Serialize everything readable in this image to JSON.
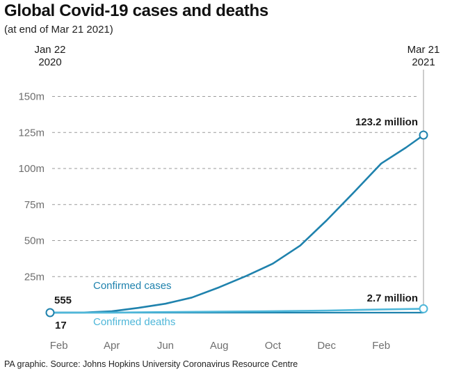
{
  "title": "Global Covid-19 cases and deaths",
  "subtitle": "(at end of Mar 21 2021)",
  "source": "PA graphic. Source: Johns Hopkins University Coronavirus Resource Centre",
  "colors": {
    "cases": "#1f82ad",
    "deaths": "#4fb7d9",
    "grid": "#9a9a9a",
    "axis_text": "#6e6e6e",
    "text": "#1a1a1a"
  },
  "chart_data": {
    "type": "line",
    "title": "Global Covid-19 cases and deaths",
    "xlabel": "",
    "ylabel": "",
    "x_range": [
      "2020-01-22",
      "2021-03-21"
    ],
    "ylim": [
      0,
      150
    ],
    "y_unit": "million",
    "y_ticks": [
      {
        "value": 25,
        "label": "25m"
      },
      {
        "value": 50,
        "label": "50m"
      },
      {
        "value": 75,
        "label": "75m"
      },
      {
        "value": 100,
        "label": "100m"
      },
      {
        "value": 125,
        "label": "125m"
      },
      {
        "value": 150,
        "label": "150m"
      }
    ],
    "x_ticks": [
      {
        "date": "2020-02-01",
        "label": "Feb"
      },
      {
        "date": "2020-04-01",
        "label": "Apr"
      },
      {
        "date": "2020-06-01",
        "label": "Jun"
      },
      {
        "date": "2020-08-01",
        "label": "Aug"
      },
      {
        "date": "2020-10-01",
        "label": "Oct"
      },
      {
        "date": "2020-12-01",
        "label": "Dec"
      },
      {
        "date": "2021-02-01",
        "label": "Feb"
      }
    ],
    "start_label": {
      "date": "2020-01-22",
      "line1": "Jan 22",
      "line2": "2020"
    },
    "end_label": {
      "date": "2021-03-21",
      "line1": "Mar 21",
      "line2": "2021"
    },
    "grid": true,
    "series": [
      {
        "name": "Confirmed cases",
        "color": "#1f82ad",
        "start_value_label": "555",
        "end_value_label": "123.2 million",
        "points": [
          {
            "date": "2020-01-22",
            "value": 0.000555
          },
          {
            "date": "2020-03-01",
            "value": 0.09
          },
          {
            "date": "2020-04-01",
            "value": 0.9
          },
          {
            "date": "2020-05-01",
            "value": 3.3
          },
          {
            "date": "2020-06-01",
            "value": 6.2
          },
          {
            "date": "2020-07-01",
            "value": 10.5
          },
          {
            "date": "2020-08-01",
            "value": 17.6
          },
          {
            "date": "2020-09-01",
            "value": 25.5
          },
          {
            "date": "2020-10-01",
            "value": 34.0
          },
          {
            "date": "2020-11-01",
            "value": 46.5
          },
          {
            "date": "2020-12-01",
            "value": 64.0
          },
          {
            "date": "2021-01-01",
            "value": 83.5
          },
          {
            "date": "2021-02-01",
            "value": 103.5
          },
          {
            "date": "2021-03-01",
            "value": 114.5
          },
          {
            "date": "2021-03-21",
            "value": 123.2
          }
        ]
      },
      {
        "name": "Confirmed deaths",
        "color": "#4fb7d9",
        "start_value_label": "17",
        "end_value_label": "2.7 million",
        "points": [
          {
            "date": "2020-01-22",
            "value": 1.7e-05
          },
          {
            "date": "2020-04-01",
            "value": 0.05
          },
          {
            "date": "2020-06-01",
            "value": 0.37
          },
          {
            "date": "2020-08-01",
            "value": 0.68
          },
          {
            "date": "2020-10-01",
            "value": 1.01
          },
          {
            "date": "2020-12-01",
            "value": 1.46
          },
          {
            "date": "2021-02-01",
            "value": 2.24
          },
          {
            "date": "2021-03-21",
            "value": 2.7
          }
        ]
      }
    ]
  }
}
